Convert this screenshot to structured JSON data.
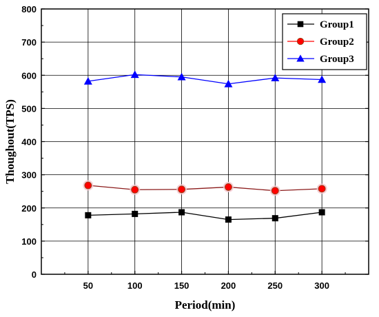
{
  "chart_data": {
    "type": "line",
    "title": "",
    "xlabel": "Period(min)",
    "ylabel": "Thoughout(TPS)",
    "x": [
      50,
      100,
      150,
      200,
      250,
      300
    ],
    "xlim": [
      0,
      350
    ],
    "ylim": [
      0,
      800
    ],
    "xticks": [
      50,
      100,
      150,
      200,
      250,
      300
    ],
    "yticks": [
      0,
      100,
      200,
      300,
      400,
      500,
      600,
      700,
      800
    ],
    "grid": true,
    "legend_position": "top-right",
    "series": [
      {
        "name": "Group1",
        "marker": "square",
        "color": "#000000",
        "values": [
          178,
          182,
          187,
          165,
          169,
          187
        ]
      },
      {
        "name": "Group2",
        "marker": "circle",
        "color": "#ff0000",
        "line_color": "#8b1a1a",
        "values": [
          268,
          255,
          256,
          263,
          252,
          258
        ]
      },
      {
        "name": "Group3",
        "marker": "triangle",
        "color": "#0000ff",
        "values": [
          582,
          602,
          595,
          574,
          592,
          587
        ]
      }
    ]
  }
}
